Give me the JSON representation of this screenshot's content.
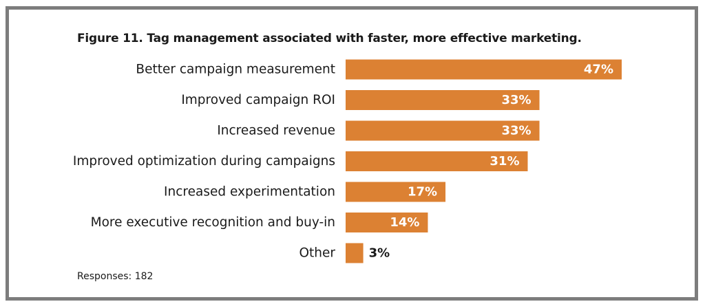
{
  "chart_data": {
    "type": "bar",
    "orientation": "horizontal",
    "title": "Figure 11. Tag management associated with faster, more effective marketing.",
    "categories": [
      "Better campaign measurement",
      "Improved campaign ROI",
      "Increased revenue",
      "Improved optimization during campaigns",
      "Increased experimentation",
      "More executive recognition and buy-in",
      "Other"
    ],
    "values": [
      47,
      33,
      33,
      31,
      17,
      14,
      3
    ],
    "value_labels": [
      "47%",
      "33%",
      "33%",
      "31%",
      "17%",
      "14%",
      "3%"
    ],
    "unit": "%",
    "xlim": [
      0,
      100
    ],
    "grid": false,
    "legend": "none",
    "bar_color": "#dc8133",
    "footnote": "Responses: 182"
  },
  "colors": {
    "bar": "#dc8133",
    "frame": "#7d7d7d",
    "label_text": "#1a1a1a",
    "inside_label_text": "#ffffff"
  }
}
